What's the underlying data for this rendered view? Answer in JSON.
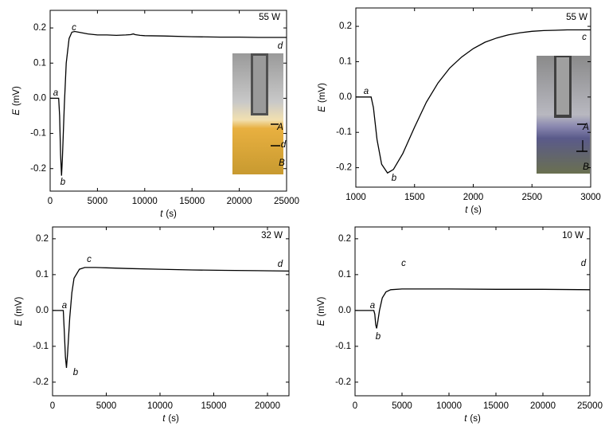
{
  "chart_data": [
    {
      "type": "line",
      "power": "55 W",
      "annotations": [
        "a",
        "b",
        "c",
        "d"
      ],
      "inset_labels": [
        "A",
        "d",
        "B"
      ],
      "x_label": {
        "symbol": "t",
        "unit": "(s)"
      },
      "y_label": {
        "symbol": "E",
        "unit": "(mV)"
      },
      "color": "#000000",
      "x": [
        0,
        700,
        900,
        1000,
        1100,
        1200,
        1300,
        1500,
        1700,
        2000,
        2300,
        2600,
        3000,
        4000,
        5000,
        6000,
        7000,
        8000,
        8500,
        8800,
        9000,
        9500,
        10000,
        12000,
        15000,
        18000,
        20000,
        22000,
        25000
      ],
      "values": [
        0,
        0,
        0,
        -0.05,
        -0.16,
        -0.22,
        -0.17,
        -0.02,
        0.1,
        0.17,
        0.188,
        0.19,
        0.188,
        0.183,
        0.18,
        0.18,
        0.179,
        0.18,
        0.181,
        0.183,
        0.181,
        0.179,
        0.178,
        0.177,
        0.175,
        0.174,
        0.174,
        0.173,
        0.173
      ],
      "xlim": [
        0,
        25000
      ],
      "xticks": [
        0,
        5000,
        10000,
        15000,
        20000,
        25000
      ],
      "ylim": [
        -0.264,
        0.25
      ],
      "yticks": [
        0.2,
        0.1,
        {
          "value": 0,
          "label": "0.0"
        },
        -0.1,
        -0.2
      ]
    },
    {
      "type": "line",
      "power": "55 W",
      "annotations": [
        "a",
        "b",
        "c"
      ],
      "inset_labels": [
        "A",
        "B"
      ],
      "x_label": {
        "symbol": "t",
        "unit": "(s)"
      },
      "y_label": {
        "symbol": "E",
        "unit": "(mV)"
      },
      "color": "#000000",
      "x": [
        1000,
        1100,
        1130,
        1150,
        1180,
        1220,
        1270,
        1320,
        1400,
        1500,
        1600,
        1700,
        1800,
        1900,
        2000,
        2100,
        2200,
        2300,
        2400,
        2500,
        2600,
        2700,
        2800,
        2900,
        3000
      ],
      "values": [
        0,
        0,
        0,
        -0.03,
        -0.12,
        -0.19,
        -0.215,
        -0.205,
        -0.16,
        -0.085,
        -0.015,
        0.04,
        0.082,
        0.113,
        0.137,
        0.155,
        0.167,
        0.176,
        0.182,
        0.186,
        0.188,
        0.189,
        0.19,
        0.19,
        0.19
      ],
      "xlim": [
        1000,
        3000
      ],
      "xticks": [
        1000,
        1500,
        2000,
        2500,
        3000
      ],
      "ylim": [
        -0.255,
        0.252
      ],
      "yticks": [
        0.2,
        0.1,
        {
          "value": 0,
          "label": "0.0"
        },
        -0.1,
        -0.2
      ]
    },
    {
      "type": "line",
      "power": "32 W",
      "annotations": [
        "a",
        "b",
        "c",
        "d"
      ],
      "x_label": {
        "symbol": "t",
        "unit": "(s)"
      },
      "y_label": {
        "symbol": "E",
        "unit": "(mV)"
      },
      "color": "#000000",
      "x": [
        0,
        800,
        1000,
        1100,
        1200,
        1300,
        1400,
        1600,
        1800,
        2000,
        2500,
        3000,
        3500,
        4000,
        5000,
        7000,
        10000,
        13000,
        16000,
        19000,
        22000
      ],
      "values": [
        0,
        0,
        0,
        -0.06,
        -0.13,
        -0.16,
        -0.12,
        -0.02,
        0.05,
        0.09,
        0.115,
        0.12,
        0.12,
        0.12,
        0.119,
        0.117,
        0.115,
        0.113,
        0.112,
        0.111,
        0.11
      ],
      "xlim": [
        0,
        22000
      ],
      "xticks": [
        0,
        5000,
        10000,
        15000,
        20000
      ],
      "ylim": [
        -0.238,
        0.233
      ],
      "yticks": [
        0.2,
        0.1,
        {
          "value": 0,
          "label": "0.0"
        },
        -0.1,
        -0.2
      ]
    },
    {
      "type": "line",
      "power": "10 W",
      "annotations": [
        "a",
        "b",
        "c",
        "d"
      ],
      "x_label": {
        "symbol": "t",
        "unit": "(s)"
      },
      "y_label": {
        "symbol": "E",
        "unit": "(mV)"
      },
      "color": "#000000",
      "x": [
        0,
        2000,
        2100,
        2200,
        2300,
        2400,
        2600,
        2900,
        3300,
        3800,
        5000,
        10000,
        15000,
        20000,
        25000
      ],
      "values": [
        0,
        0,
        -0.01,
        -0.04,
        -0.05,
        -0.035,
        0,
        0.035,
        0.052,
        0.058,
        0.06,
        0.06,
        0.059,
        0.059,
        0.058
      ],
      "xlim": [
        0,
        25000
      ],
      "xticks": [
        0,
        5000,
        10000,
        15000,
        20000,
        25000
      ],
      "ylim": [
        -0.238,
        0.233
      ],
      "yticks": [
        0.2,
        0.1,
        {
          "value": 0,
          "label": "0.0"
        },
        -0.1,
        -0.2
      ]
    }
  ]
}
